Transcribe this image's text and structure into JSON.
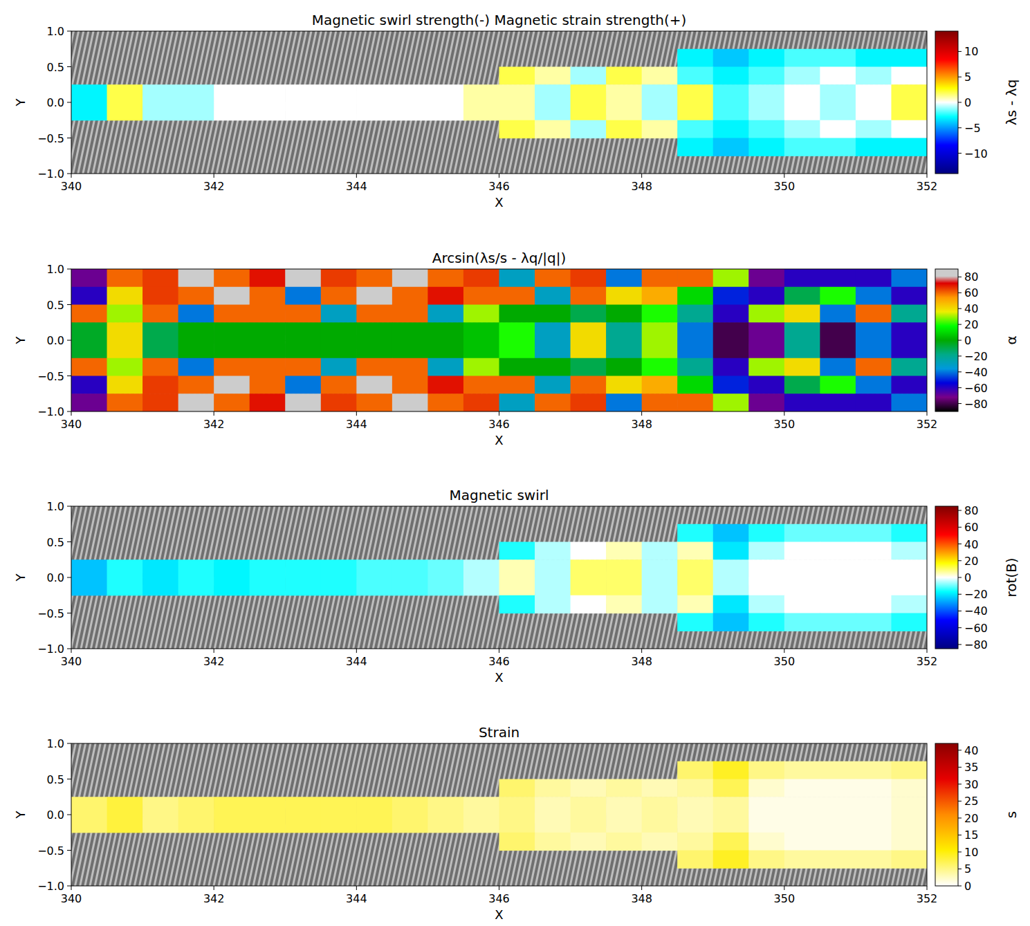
{
  "chart_data": [
    {
      "type": "heatmap",
      "title": "Magnetic swirl strength(-) Magnetic strain strength(+)",
      "x_label": "X",
      "y_label": "Y",
      "xlim": [
        340,
        352
      ],
      "ylim": [
        -1,
        1
      ],
      "xticks": [
        340,
        342,
        344,
        346,
        348,
        350,
        352
      ],
      "yticks": [
        {
          "value": -1,
          "label": "−1.0"
        },
        {
          "value": -0.5,
          "label": "−0.5"
        },
        {
          "value": 0,
          "label": "0.0"
        },
        {
          "value": 0.5,
          "label": "0.5"
        },
        {
          "value": 1,
          "label": "1.0"
        }
      ],
      "x": [
        340,
        340.5,
        341,
        341.5,
        342,
        342.5,
        343,
        343.5,
        344,
        344.5,
        345,
        345.5,
        346,
        346.5,
        347,
        347.5,
        348,
        348.5,
        349,
        349.5,
        350,
        350.5,
        351,
        351.5,
        352
      ],
      "y": [
        1,
        0.75,
        0.5,
        0.25,
        0,
        -0.25,
        -0.5,
        -0.75,
        -1
      ],
      "cells": [
        [
          null,
          null,
          null,
          null,
          null,
          null,
          null,
          null,
          null,
          null,
          null,
          null,
          null,
          null,
          null,
          null,
          null,
          null,
          null,
          null,
          null,
          null,
          null,
          null
        ],
        [
          null,
          null,
          null,
          null,
          null,
          null,
          null,
          null,
          null,
          null,
          null,
          null,
          null,
          null,
          null,
          null,
          null,
          -3,
          -4,
          -3,
          -2,
          -2,
          -3,
          -3
        ],
        [
          null,
          null,
          null,
          null,
          null,
          null,
          null,
          null,
          null,
          null,
          null,
          null,
          2,
          1,
          -1,
          2,
          1,
          -2,
          -3,
          -2,
          -1,
          0,
          -1,
          0
        ],
        [
          -3,
          2,
          -1,
          -1,
          0,
          0,
          0,
          0,
          0,
          0,
          0,
          1,
          1,
          -1,
          2,
          1,
          -1,
          2,
          -2,
          -1,
          0,
          -1,
          0,
          2
        ],
        [
          -3,
          2,
          -1,
          -1,
          0,
          0,
          0,
          0,
          0,
          0,
          0,
          1,
          1,
          -1,
          2,
          1,
          -1,
          2,
          -2,
          -1,
          0,
          -1,
          0,
          2
        ],
        [
          null,
          null,
          null,
          null,
          null,
          null,
          null,
          null,
          null,
          null,
          null,
          null,
          2,
          1,
          -1,
          2,
          1,
          -2,
          -3,
          -2,
          -1,
          0,
          -1,
          0
        ],
        [
          null,
          null,
          null,
          null,
          null,
          null,
          null,
          null,
          null,
          null,
          null,
          null,
          null,
          null,
          null,
          null,
          null,
          -3,
          -4,
          -3,
          -2,
          -2,
          -3,
          -3
        ],
        [
          null,
          null,
          null,
          null,
          null,
          null,
          null,
          null,
          null,
          null,
          null,
          null,
          null,
          null,
          null,
          null,
          null,
          null,
          null,
          null,
          null,
          null,
          null,
          null
        ]
      ],
      "colorbar_label": "λs - λq",
      "colorbar_range": [
        -14,
        14
      ],
      "colorbar_ticks": [
        {
          "value": -10,
          "label": "−10"
        },
        {
          "value": -5,
          "label": "−5"
        },
        0,
        5,
        10
      ]
    },
    {
      "type": "heatmap",
      "title": "Arcsin(λs/s - λq/|q|)",
      "x_label": "X",
      "y_label": "Y",
      "xlim": [
        340,
        352
      ],
      "ylim": [
        -1,
        1
      ],
      "xticks": [
        340,
        342,
        344,
        346,
        348,
        350,
        352
      ],
      "yticks": [
        {
          "value": -1,
          "label": "−1.0"
        },
        {
          "value": -0.5,
          "label": "−0.5"
        },
        {
          "value": 0,
          "label": "0.0"
        },
        {
          "value": 0.5,
          "label": "0.5"
        },
        {
          "value": 1,
          "label": "1.0"
        }
      ],
      "x": [
        340,
        340.5,
        341,
        341.5,
        342,
        342.5,
        343,
        343.5,
        344,
        344.5,
        345,
        345.5,
        346,
        346.5,
        347,
        347.5,
        348,
        348.5,
        349,
        349.5,
        350,
        350.5,
        351,
        351.5,
        352
      ],
      "y": [
        1,
        0.75,
        0.5,
        0.25,
        0,
        -0.25,
        -0.5,
        -0.75,
        -1
      ],
      "cells": [
        [
          -70,
          60,
          65,
          85,
          60,
          70,
          85,
          65,
          60,
          85,
          60,
          65,
          -30,
          60,
          65,
          -40,
          60,
          60,
          30,
          -70,
          -60,
          -60,
          -60,
          -40
        ],
        [
          -60,
          40,
          65,
          60,
          85,
          60,
          -40,
          60,
          85,
          60,
          70,
          60,
          60,
          -30,
          60,
          40,
          50,
          10,
          -50,
          -60,
          -10,
          20,
          -40,
          -60
        ],
        [
          60,
          30,
          60,
          -40,
          60,
          60,
          60,
          -30,
          60,
          60,
          -30,
          30,
          0,
          0,
          -10,
          0,
          20,
          -20,
          -60,
          30,
          40,
          -40,
          60,
          -20
        ],
        [
          -5,
          40,
          -10,
          0,
          0,
          0,
          0,
          0,
          0,
          0,
          0,
          5,
          20,
          -30,
          40,
          -20,
          30,
          -40,
          -80,
          -70,
          -20,
          -80,
          -40,
          -60
        ],
        [
          -5,
          40,
          -10,
          0,
          0,
          0,
          0,
          0,
          0,
          0,
          0,
          5,
          20,
          -30,
          40,
          -20,
          30,
          -40,
          -80,
          -70,
          -20,
          -80,
          -40,
          -60
        ],
        [
          60,
          30,
          60,
          -40,
          60,
          60,
          60,
          -30,
          60,
          60,
          -30,
          30,
          0,
          0,
          -10,
          0,
          20,
          -20,
          -60,
          30,
          40,
          -40,
          60,
          -20
        ],
        [
          -60,
          40,
          65,
          60,
          85,
          60,
          -40,
          60,
          85,
          60,
          70,
          60,
          60,
          -30,
          60,
          40,
          50,
          10,
          -50,
          -60,
          -10,
          20,
          -40,
          -60
        ],
        [
          -70,
          60,
          65,
          85,
          60,
          70,
          85,
          65,
          60,
          85,
          60,
          65,
          -30,
          60,
          65,
          -40,
          60,
          60,
          30,
          -70,
          -60,
          -60,
          -60,
          -40
        ]
      ],
      "colorbar_label": "α",
      "colorbar_range": [
        -90,
        90
      ],
      "colorbar_ticks": [
        {
          "value": -80,
          "label": "−80"
        },
        {
          "value": -60,
          "label": "−60"
        },
        {
          "value": -40,
          "label": "−40"
        },
        {
          "value": -20,
          "label": "−20"
        },
        0,
        20,
        40,
        60,
        80
      ]
    },
    {
      "type": "heatmap",
      "title": "Magnetic swirl",
      "x_label": "X",
      "y_label": "Y",
      "xlim": [
        340,
        352
      ],
      "ylim": [
        -1,
        1
      ],
      "xticks": [
        340,
        342,
        344,
        346,
        348,
        350,
        352
      ],
      "yticks": [
        {
          "value": -1,
          "label": "−1.0"
        },
        {
          "value": -0.5,
          "label": "−0.5"
        },
        {
          "value": 0,
          "label": "0.0"
        },
        {
          "value": 0.5,
          "label": "0.5"
        },
        {
          "value": 1,
          "label": "1.0"
        }
      ],
      "x": [
        340,
        340.5,
        341,
        341.5,
        342,
        342.5,
        343,
        343.5,
        344,
        344.5,
        345,
        345.5,
        346,
        346.5,
        347,
        347.5,
        348,
        348.5,
        349,
        349.5,
        350,
        350.5,
        351,
        351.5,
        352
      ],
      "y": [
        1,
        0.75,
        0.5,
        0.25,
        0,
        -0.25,
        -0.5,
        -0.75,
        -1
      ],
      "cells": [
        [
          null,
          null,
          null,
          null,
          null,
          null,
          null,
          null,
          null,
          null,
          null,
          null,
          null,
          null,
          null,
          null,
          null,
          null,
          null,
          null,
          null,
          null,
          null,
          null
        ],
        [
          null,
          null,
          null,
          null,
          null,
          null,
          null,
          null,
          null,
          null,
          null,
          null,
          null,
          null,
          null,
          null,
          null,
          -15,
          -25,
          -15,
          -10,
          -10,
          -10,
          -15
        ],
        [
          null,
          null,
          null,
          null,
          null,
          null,
          null,
          null,
          null,
          null,
          null,
          null,
          -15,
          -5,
          0,
          5,
          -5,
          5,
          -20,
          -5,
          0,
          0,
          0,
          -5
        ],
        [
          -25,
          -15,
          -20,
          -15,
          -18,
          -15,
          -15,
          -15,
          -12,
          -12,
          -10,
          -5,
          5,
          -5,
          10,
          10,
          -5,
          10,
          -5,
          0,
          0,
          0,
          0,
          0
        ],
        [
          -25,
          -15,
          -20,
          -15,
          -18,
          -15,
          -15,
          -15,
          -12,
          -12,
          -10,
          -5,
          5,
          -5,
          10,
          10,
          -5,
          10,
          -5,
          0,
          0,
          0,
          0,
          0
        ],
        [
          null,
          null,
          null,
          null,
          null,
          null,
          null,
          null,
          null,
          null,
          null,
          null,
          -15,
          -5,
          0,
          5,
          -5,
          5,
          -20,
          -5,
          0,
          0,
          0,
          -5
        ],
        [
          null,
          null,
          null,
          null,
          null,
          null,
          null,
          null,
          null,
          null,
          null,
          null,
          null,
          null,
          null,
          null,
          null,
          -15,
          -25,
          -15,
          -10,
          -10,
          -10,
          -15
        ],
        [
          null,
          null,
          null,
          null,
          null,
          null,
          null,
          null,
          null,
          null,
          null,
          null,
          null,
          null,
          null,
          null,
          null,
          null,
          null,
          null,
          null,
          null,
          null,
          null
        ]
      ],
      "colorbar_label": "rot(B)",
      "colorbar_range": [
        -85,
        85
      ],
      "colorbar_ticks": [
        {
          "value": -80,
          "label": "−80"
        },
        {
          "value": -60,
          "label": "−60"
        },
        {
          "value": -40,
          "label": "−40"
        },
        {
          "value": -20,
          "label": "−20"
        },
        0,
        20,
        40,
        60,
        80
      ]
    },
    {
      "type": "heatmap",
      "title": "Strain",
      "x_label": "X",
      "y_label": "Y",
      "xlim": [
        340,
        352
      ],
      "ylim": [
        -1,
        1
      ],
      "xticks": [
        340,
        342,
        344,
        346,
        348,
        350,
        352
      ],
      "yticks": [
        {
          "value": -1,
          "label": "−1.0"
        },
        {
          "value": -0.5,
          "label": "−0.5"
        },
        {
          "value": 0,
          "label": "0.0"
        },
        {
          "value": 0.5,
          "label": "0.5"
        },
        {
          "value": 1,
          "label": "1.0"
        }
      ],
      "x": [
        340,
        340.5,
        341,
        341.5,
        342,
        342.5,
        343,
        343.5,
        344,
        344.5,
        345,
        345.5,
        346,
        346.5,
        347,
        347.5,
        348,
        348.5,
        349,
        349.5,
        350,
        350.5,
        351,
        351.5,
        352
      ],
      "y": [
        1,
        0.75,
        0.5,
        0.25,
        0,
        -0.25,
        -0.5,
        -0.75,
        -1
      ],
      "cells": [
        [
          null,
          null,
          null,
          null,
          null,
          null,
          null,
          null,
          null,
          null,
          null,
          null,
          null,
          null,
          null,
          null,
          null,
          null,
          null,
          null,
          null,
          null,
          null,
          null
        ],
        [
          null,
          null,
          null,
          null,
          null,
          null,
          null,
          null,
          null,
          null,
          null,
          null,
          null,
          null,
          null,
          null,
          null,
          6,
          9,
          5,
          4,
          4,
          4,
          5
        ],
        [
          null,
          null,
          null,
          null,
          null,
          null,
          null,
          null,
          null,
          null,
          null,
          null,
          6,
          4,
          3,
          4,
          3,
          4,
          7,
          2,
          1,
          1,
          1,
          2
        ],
        [
          6,
          8,
          5,
          6,
          7,
          7,
          7,
          7,
          7,
          6,
          5,
          4,
          5,
          3,
          4,
          3,
          4,
          3,
          4,
          1,
          1,
          1,
          1,
          2
        ],
        [
          6,
          8,
          5,
          6,
          7,
          7,
          7,
          7,
          7,
          6,
          5,
          4,
          5,
          3,
          4,
          3,
          4,
          3,
          4,
          1,
          1,
          1,
          1,
          2
        ],
        [
          null,
          null,
          null,
          null,
          null,
          null,
          null,
          null,
          null,
          null,
          null,
          null,
          6,
          4,
          3,
          4,
          3,
          4,
          7,
          2,
          1,
          1,
          1,
          2
        ],
        [
          null,
          null,
          null,
          null,
          null,
          null,
          null,
          null,
          null,
          null,
          null,
          null,
          null,
          null,
          null,
          null,
          null,
          6,
          9,
          5,
          4,
          4,
          4,
          5
        ],
        [
          null,
          null,
          null,
          null,
          null,
          null,
          null,
          null,
          null,
          null,
          null,
          null,
          null,
          null,
          null,
          null,
          null,
          null,
          null,
          null,
          null,
          null,
          null,
          null
        ]
      ],
      "colorbar_label": "s",
      "colorbar_range": [
        0,
        42
      ],
      "colorbar_ticks": [
        0,
        5,
        10,
        15,
        20,
        25,
        30,
        35,
        40
      ]
    }
  ]
}
